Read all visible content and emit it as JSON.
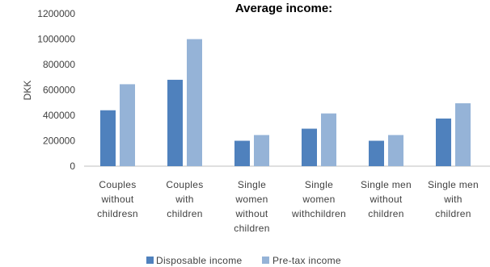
{
  "chart_data": {
    "type": "bar",
    "title": "Average income:",
    "xlabel": "",
    "ylabel": "DKK",
    "ylim": [
      0,
      1200000
    ],
    "yticks": [
      0,
      200000,
      400000,
      600000,
      800000,
      1000000,
      1200000
    ],
    "ytick_labels": [
      "0",
      "200000",
      "400000",
      "600000",
      "800000",
      "1000000",
      "1200000"
    ],
    "categories": [
      [
        "Couples",
        "without",
        "childresn"
      ],
      [
        "Couples",
        "with",
        "children"
      ],
      [
        "Single",
        "women",
        "without",
        "children"
      ],
      [
        "Single",
        "women",
        "withchildren"
      ],
      [
        "Single men",
        "without",
        "children"
      ],
      [
        "Single men",
        "with",
        "children"
      ]
    ],
    "series": [
      {
        "name": "Disposable income",
        "color": "#4f81bd",
        "values": [
          440000,
          680000,
          200000,
          295000,
          200000,
          375000
        ]
      },
      {
        "name": "Pre-tax income",
        "color": "#95b3d7",
        "values": [
          645000,
          1000000,
          245000,
          415000,
          245000,
          495000
        ]
      }
    ],
    "legend_position": "bottom",
    "grid": false
  }
}
